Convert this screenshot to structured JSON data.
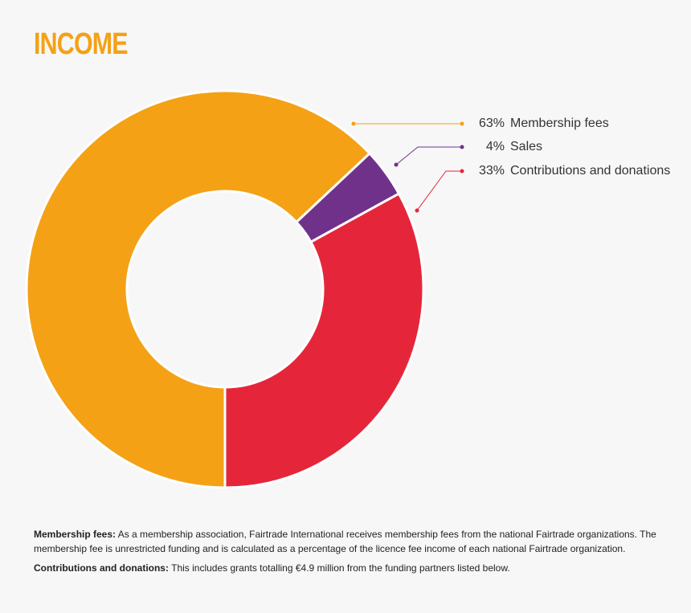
{
  "chart_data": {
    "type": "pie",
    "title": "INCOME",
    "categories": [
      "Membership fees",
      "Sales",
      "Contributions and donations"
    ],
    "values": [
      63,
      4,
      33
    ],
    "value_labels": [
      "63%",
      "4%",
      "33%"
    ],
    "colors": [
      "#f4a116",
      "#6f318a",
      "#e5263a"
    ],
    "notes": [
      {
        "term": "Membership fees:",
        "text": "As a membership association, Fairtrade International receives membership fees from the national Fairtrade organizations. The membership fee is unrestricted funding and is calculated as a percentage of the licence fee income of each national Fairtrade organization."
      },
      {
        "term": "Contributions and donations:",
        "text": "This includes grants totalling €4.9 million from the funding partners listed below."
      }
    ]
  }
}
